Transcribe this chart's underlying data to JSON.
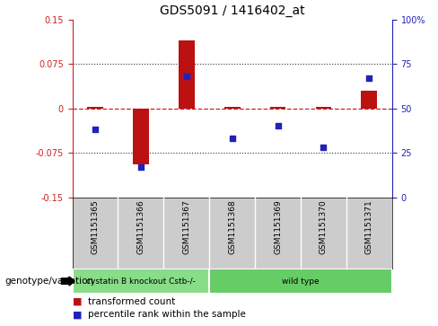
{
  "title": "GDS5091 / 1416402_at",
  "samples": [
    "GSM1151365",
    "GSM1151366",
    "GSM1151367",
    "GSM1151368",
    "GSM1151369",
    "GSM1151370",
    "GSM1151371"
  ],
  "transformed_count": [
    0.002,
    -0.095,
    0.115,
    0.002,
    0.002,
    0.002,
    0.03
  ],
  "percentile_rank": [
    38,
    17,
    68,
    33,
    40,
    28,
    67
  ],
  "ylim_left": [
    -0.15,
    0.15
  ],
  "ylim_right": [
    0,
    100
  ],
  "yticks_left": [
    -0.15,
    -0.075,
    0,
    0.075,
    0.15
  ],
  "yticks_right": [
    0,
    25,
    50,
    75,
    100
  ],
  "ytick_labels_left": [
    "-0.15",
    "-0.075",
    "0",
    "0.075",
    "0.15"
  ],
  "ytick_labels_right": [
    "0",
    "25",
    "50",
    "75",
    "100%"
  ],
  "hlines_dotted": [
    -0.075,
    0.075
  ],
  "hline_zero": 0,
  "bar_color": "#bb1111",
  "dot_color": "#2222bb",
  "zero_line_color": "#cc2222",
  "dot_line_color": "#333333",
  "groups": [
    {
      "label": "cystatin B knockout Cstb-/-",
      "start": 0,
      "end": 2,
      "color": "#88dd88"
    },
    {
      "label": "wild type",
      "start": 3,
      "end": 6,
      "color": "#66cc66"
    }
  ],
  "group_row_label": "genotype/variation",
  "legend_bar_label": "transformed count",
  "legend_dot_label": "percentile rank within the sample",
  "bg_color": "#ffffff",
  "plot_bg_color": "#ffffff",
  "sample_bg_color": "#cccccc",
  "bar_width": 0.35
}
